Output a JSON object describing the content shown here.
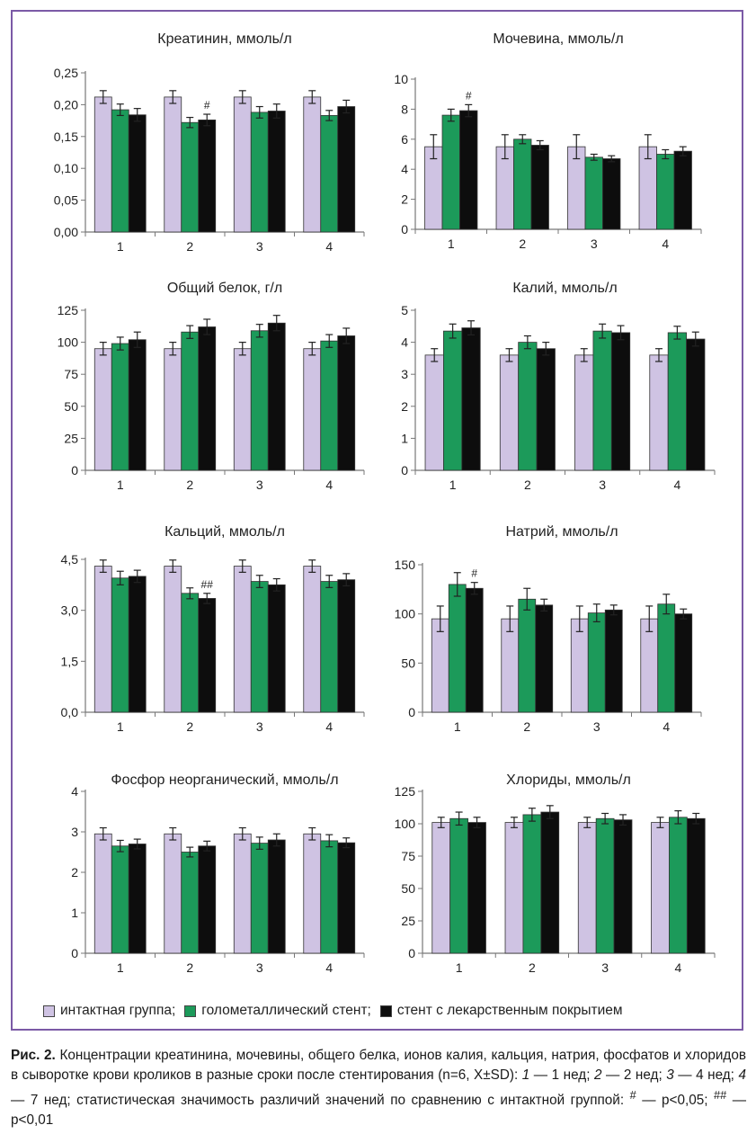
{
  "colors": {
    "intact": "#cfc3e3",
    "bare_metal": "#1c9a5a",
    "drug": "#0d0d0d",
    "frame": "#7b5aa6"
  },
  "legend": {
    "items": [
      {
        "label": "интактная группа;",
        "color": "#cfc3e3"
      },
      {
        "label": "голометаллический стент;",
        "color": "#1c9a5a"
      },
      {
        "label": "стент с лекарственным покрытием",
        "color": "#0d0d0d"
      }
    ]
  },
  "caption": {
    "prefix": "Рис. 2.",
    "p1": " Концентрации креатинина, мочевины, общего белка, ионов калия, кальция, натрия, фосфатов и хлоридов в сыворотке крови кроликов в разные сроки после стентирования (n=6, X±SD): ",
    "n1": "1",
    "t1": " — 1 нед; ",
    "n2": "2",
    "t2": " — 2 нед; ",
    "n3": "3",
    "t3": " — 4 нед; ",
    "n4": "4",
    "t4": " — 7 нед; статистическая значимость различий значений по сравнению с интактной группой: ",
    "sig1_mark": "#",
    "sig1_text": " — p<0,05; ",
    "sig2_mark": "##",
    "sig2_text": " — p<0,01"
  },
  "chart_data": [
    {
      "type": "bar",
      "title": "Креатинин, ммоль/л",
      "categories": [
        "1",
        "2",
        "3",
        "4"
      ],
      "ylim": [
        0,
        0.25
      ],
      "yticks": [
        "0,00",
        "0,05",
        "0,10",
        "0,15",
        "0,20",
        "0,25"
      ],
      "series": [
        {
          "values": [
            0.212,
            0.212,
            0.212,
            0.212
          ],
          "errors": [
            0.01,
            0.01,
            0.01,
            0.01
          ]
        },
        {
          "values": [
            0.192,
            0.172,
            0.188,
            0.183
          ],
          "errors": [
            0.009,
            0.008,
            0.009,
            0.008
          ]
        },
        {
          "values": [
            0.184,
            0.176,
            0.19,
            0.197
          ],
          "errors": [
            0.01,
            0.009,
            0.011,
            0.01
          ]
        }
      ],
      "annotations": [
        {
          "category": "2",
          "series": 2,
          "text": "#"
        }
      ]
    },
    {
      "type": "bar",
      "title": "Мочевина, ммоль/л",
      "categories": [
        "1",
        "2",
        "3",
        "4"
      ],
      "ylim": [
        0,
        10
      ],
      "yticks": [
        "0",
        "2",
        "4",
        "6",
        "8",
        "10"
      ],
      "series": [
        {
          "values": [
            5.5,
            5.5,
            5.5,
            5.5
          ],
          "errors": [
            0.8,
            0.8,
            0.8,
            0.8
          ]
        },
        {
          "values": [
            7.6,
            6.0,
            4.8,
            5.0
          ],
          "errors": [
            0.4,
            0.3,
            0.2,
            0.3
          ]
        },
        {
          "values": [
            7.9,
            5.6,
            4.7,
            5.2
          ],
          "errors": [
            0.4,
            0.3,
            0.2,
            0.3
          ]
        }
      ],
      "annotations": [
        {
          "category": "1",
          "series": 2,
          "text": "#"
        }
      ]
    },
    {
      "type": "bar",
      "title": "Общий белок, г/л",
      "categories": [
        "1",
        "2",
        "3",
        "4"
      ],
      "ylim": [
        0,
        125
      ],
      "yticks": [
        "0",
        "25",
        "50",
        "75",
        "100",
        "125"
      ],
      "series": [
        {
          "values": [
            95,
            95,
            95,
            95
          ],
          "errors": [
            5,
            5,
            5,
            5
          ]
        },
        {
          "values": [
            99,
            108,
            109,
            101
          ],
          "errors": [
            5,
            5,
            5,
            5
          ]
        },
        {
          "values": [
            102,
            112,
            115,
            105
          ],
          "errors": [
            6,
            6,
            6,
            6
          ]
        }
      ],
      "annotations": []
    },
    {
      "type": "bar",
      "title": "Калий, ммоль/л",
      "categories": [
        "1",
        "2",
        "3",
        "4"
      ],
      "ylim": [
        0,
        5
      ],
      "yticks": [
        "0",
        "1",
        "2",
        "3",
        "4",
        "5"
      ],
      "series": [
        {
          "values": [
            3.6,
            3.6,
            3.6,
            3.6
          ],
          "errors": [
            0.2,
            0.2,
            0.2,
            0.2
          ]
        },
        {
          "values": [
            4.35,
            4.0,
            4.35,
            4.3
          ],
          "errors": [
            0.22,
            0.2,
            0.22,
            0.2
          ]
        },
        {
          "values": [
            4.45,
            3.8,
            4.3,
            4.1
          ],
          "errors": [
            0.22,
            0.2,
            0.22,
            0.22
          ]
        }
      ],
      "annotations": []
    },
    {
      "type": "bar",
      "title": "Кальций, ммоль/л",
      "categories": [
        "1",
        "2",
        "3",
        "4"
      ],
      "ylim": [
        0,
        4.5
      ],
      "yticks": [
        "0,0",
        "1,5",
        "3,0",
        "4,5"
      ],
      "series": [
        {
          "values": [
            4.3,
            4.3,
            4.3,
            4.3
          ],
          "errors": [
            0.18,
            0.18,
            0.18,
            0.18
          ]
        },
        {
          "values": [
            3.95,
            3.5,
            3.85,
            3.85
          ],
          "errors": [
            0.2,
            0.16,
            0.18,
            0.18
          ]
        },
        {
          "values": [
            4.0,
            3.35,
            3.75,
            3.9
          ],
          "errors": [
            0.18,
            0.15,
            0.18,
            0.18
          ]
        }
      ],
      "annotations": [
        {
          "category": "2",
          "series": 2,
          "text": "##"
        }
      ]
    },
    {
      "type": "bar",
      "title": "Натрий, ммоль/л",
      "categories": [
        "1",
        "2",
        "3",
        "4"
      ],
      "ylim": [
        0,
        150
      ],
      "yticks": [
        "0",
        "50",
        "100",
        "150"
      ],
      "series": [
        {
          "values": [
            95,
            95,
            95,
            95
          ],
          "errors": [
            13,
            13,
            13,
            13
          ]
        },
        {
          "values": [
            130,
            115,
            101,
            110
          ],
          "errors": [
            12,
            11,
            9,
            10
          ]
        },
        {
          "values": [
            126,
            109,
            104,
            100
          ],
          "errors": [
            6,
            6,
            5,
            5
          ]
        }
      ],
      "annotations": [
        {
          "category": "1",
          "series": 2,
          "text": "#"
        }
      ]
    },
    {
      "type": "bar",
      "title": "Фосфор неорганический, ммоль/л",
      "categories": [
        "1",
        "2",
        "3",
        "4"
      ],
      "ylim": [
        0,
        4
      ],
      "yticks": [
        "0",
        "1",
        "2",
        "3",
        "4"
      ],
      "series": [
        {
          "values": [
            2.95,
            2.95,
            2.95,
            2.95
          ],
          "errors": [
            0.15,
            0.15,
            0.15,
            0.15
          ]
        },
        {
          "values": [
            2.65,
            2.5,
            2.72,
            2.78
          ],
          "errors": [
            0.14,
            0.12,
            0.15,
            0.15
          ]
        },
        {
          "values": [
            2.7,
            2.65,
            2.8,
            2.73
          ],
          "errors": [
            0.12,
            0.12,
            0.15,
            0.12
          ]
        }
      ],
      "annotations": []
    },
    {
      "type": "bar",
      "title": "Хлориды, ммоль/л",
      "categories": [
        "1",
        "2",
        "3",
        "4"
      ],
      "ylim": [
        0,
        125
      ],
      "yticks": [
        "0",
        "25",
        "50",
        "75",
        "100",
        "125"
      ],
      "series": [
        {
          "values": [
            101,
            101,
            101,
            101
          ],
          "errors": [
            4,
            4,
            4,
            4
          ]
        },
        {
          "values": [
            104,
            107,
            104,
            105
          ],
          "errors": [
            5,
            5,
            4,
            5
          ]
        },
        {
          "values": [
            101,
            109,
            103,
            104
          ],
          "errors": [
            4,
            5,
            4,
            4
          ]
        }
      ],
      "annotations": []
    }
  ]
}
